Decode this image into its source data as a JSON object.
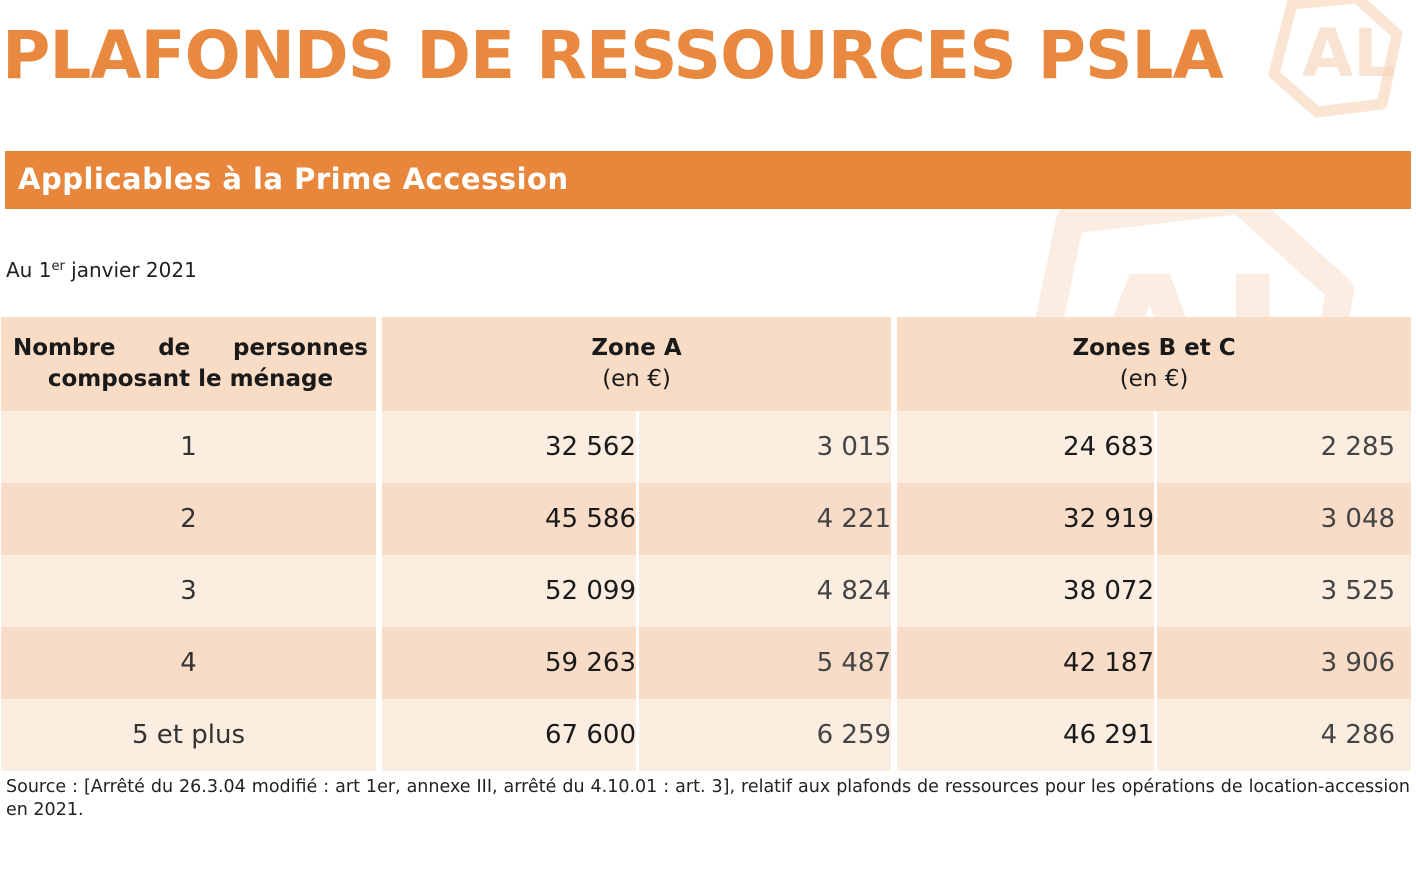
{
  "title": "PLAFONDS DE RESSOURCES PSLA",
  "banner": "Applicables à la Prime Accession",
  "date": {
    "prefix": "Au 1",
    "superscript": "er",
    "suffix": " janvier 2021"
  },
  "table": {
    "header": {
      "household": "Nombre de personnes composant le ménage",
      "zone_a": {
        "name": "Zone A",
        "unit": "(en €)"
      },
      "zones_bc": {
        "name": "Zones B et C",
        "unit": "(en €)"
      }
    },
    "rows": [
      {
        "persons": "1",
        "zone_a": "32 562",
        "zone_a_2": "3 015",
        "zones_bc": "24 683",
        "zones_bc_2": "2 285"
      },
      {
        "persons": "2",
        "zone_a": "45 586",
        "zone_a_2": "4 221",
        "zones_bc": "32 919",
        "zones_bc_2": "3 048"
      },
      {
        "persons": "3",
        "zone_a": "52 099",
        "zone_a_2": "4 824",
        "zones_bc": "38 072",
        "zones_bc_2": "3 525"
      },
      {
        "persons": "4",
        "zone_a": "59 263",
        "zone_a_2": "5 487",
        "zones_bc": "42 187",
        "zones_bc_2": "3 906"
      },
      {
        "persons": "5 et plus",
        "zone_a": "67 600",
        "zone_a_2": "6 259",
        "zones_bc": "46 291",
        "zones_bc_2": "4 286"
      }
    ]
  },
  "source": "Source : [Arrêté du 26.3.04 modifié : art 1er, annexe III, arrêté du 4.10.01 : art. 3], relatif aux plafonds de ressources pour les opérations de location-accession en 2021.",
  "watermark": {
    "text": "AL",
    "color": "#e8893f"
  },
  "colors": {
    "accent": "#e8873c",
    "header_bg": "#f8dcc6",
    "row_light": "#fcede1",
    "row_dark": "#f8dcc7"
  }
}
